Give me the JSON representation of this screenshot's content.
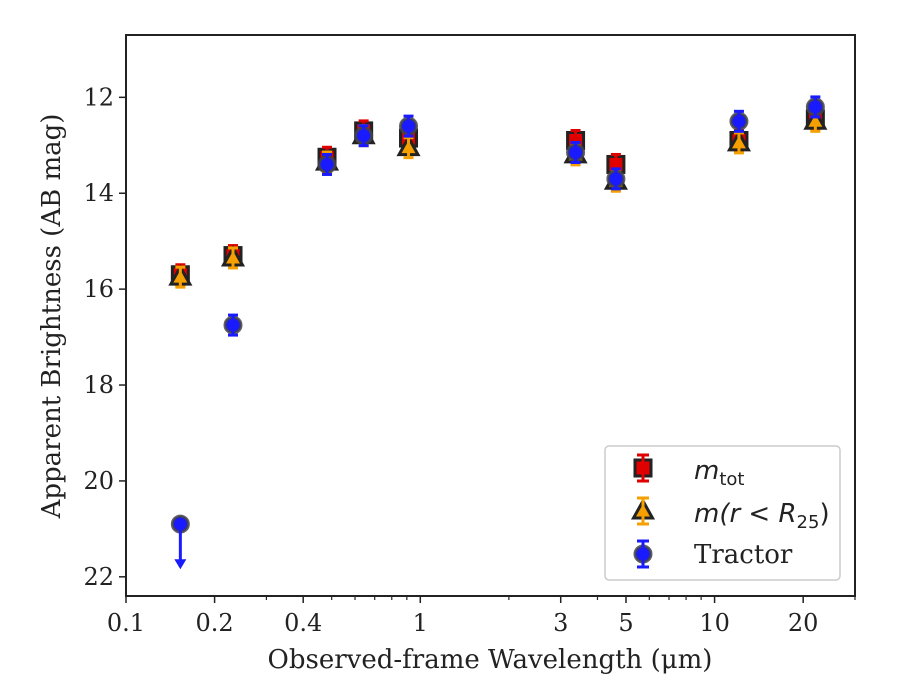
{
  "chart_data": {
    "type": "scatter",
    "xlabel": "Observed-frame Wavelength (μm)",
    "ylabel": "Apparent Brightness (AB mag)",
    "xscale": "log",
    "xlim": [
      0.1,
      30
    ],
    "ylim": [
      22.4,
      10.7
    ],
    "y_inverted": true,
    "x_ticks": [
      {
        "value": 0.1,
        "label": "0.1"
      },
      {
        "value": 0.2,
        "label": "0.2"
      },
      {
        "value": 0.4,
        "label": "0.4"
      },
      {
        "value": 1,
        "label": "1"
      },
      {
        "value": 3,
        "label": "3"
      },
      {
        "value": 5,
        "label": "5"
      },
      {
        "value": 10,
        "label": "10"
      },
      {
        "value": 20,
        "label": "20"
      }
    ],
    "y_ticks": [
      {
        "value": 12,
        "label": "12"
      },
      {
        "value": 14,
        "label": "14"
      },
      {
        "value": 16,
        "label": "16"
      },
      {
        "value": 18,
        "label": "18"
      },
      {
        "value": 20,
        "label": "20"
      },
      {
        "value": 22,
        "label": "22"
      }
    ],
    "grid": false,
    "legend_position": "lower-right",
    "series": [
      {
        "name": "m_tot",
        "legend_main": "m",
        "legend_sub": "tot",
        "marker": "square",
        "color": "#e00000",
        "error_color": "#e00000",
        "x": [
          0.153,
          0.231,
          0.482,
          0.642,
          0.912,
          3.37,
          4.62,
          12.1,
          22.0
        ],
        "y": [
          15.7,
          15.3,
          13.25,
          12.7,
          12.85,
          12.9,
          13.4,
          12.9,
          12.45
        ]
      },
      {
        "name": "m(r < R25)",
        "legend_main": "m(r < R",
        "legend_sub": "25",
        "legend_close": ")",
        "marker": "triangle",
        "color": "#f5a000",
        "error_color": "#f5a000",
        "x": [
          0.153,
          0.231,
          0.482,
          0.642,
          0.912,
          3.37,
          4.62,
          12.1,
          22.0
        ],
        "y": [
          15.75,
          15.35,
          13.35,
          12.8,
          13.05,
          13.2,
          13.75,
          12.95,
          12.5
        ]
      },
      {
        "name": "Tractor",
        "marker": "circle",
        "color": "#1a1aff",
        "error_color": "#1a1aff",
        "x": [
          0.153,
          0.231,
          0.482,
          0.642,
          0.912,
          3.37,
          4.62,
          12.1,
          22.0
        ],
        "y": [
          20.9,
          16.75,
          13.4,
          12.8,
          12.6,
          13.15,
          13.7,
          12.5,
          12.2
        ],
        "upper_limit_index": 0,
        "upper_limit_arrow_to": 21.8
      }
    ]
  }
}
